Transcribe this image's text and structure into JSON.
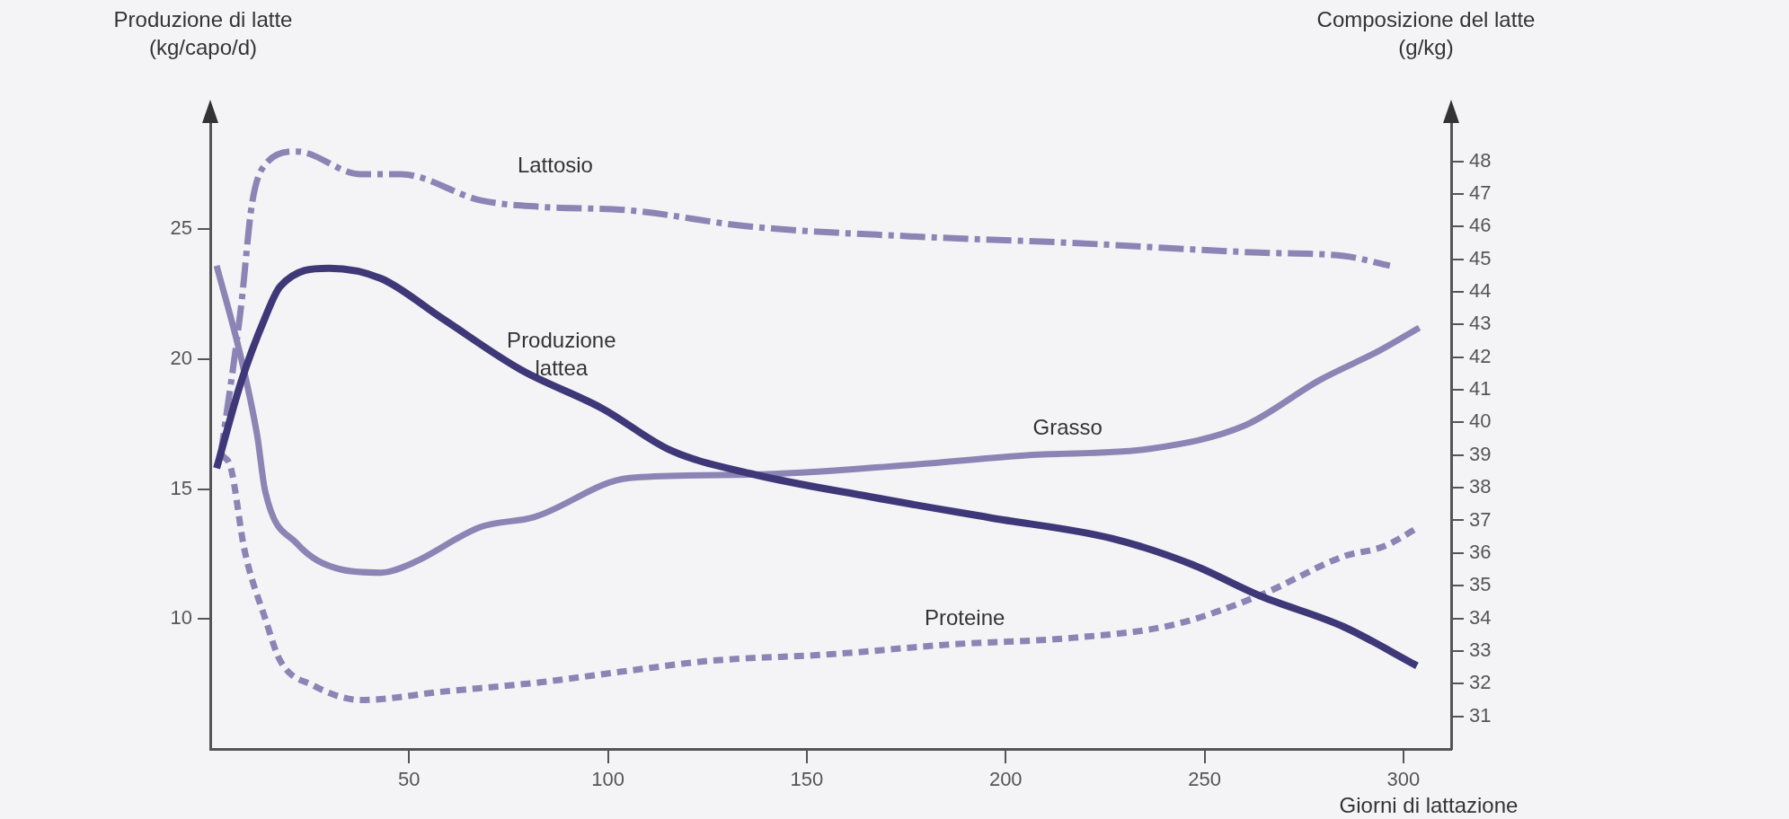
{
  "chart_data": {
    "type": "line",
    "xlabel": "Giorni di lattazione",
    "ylabel": "Produzione di latte\n(kg/capo/d)",
    "y2label": "Composizione del latte\n(g/kg)",
    "xlim": [
      0,
      312
    ],
    "xticks": [
      50,
      100,
      150,
      200,
      250,
      300
    ],
    "ylim": [
      5,
      29.5
    ],
    "yticks": [
      10,
      15,
      20,
      25
    ],
    "y2lim": [
      30,
      49.5
    ],
    "y2ticks": [
      31,
      32,
      33,
      34,
      35,
      36,
      37,
      38,
      39,
      40,
      41,
      42,
      43,
      44,
      45,
      46,
      47,
      48
    ],
    "grid": false,
    "legend": false,
    "marker": "none",
    "series": [
      {
        "name": "Produzione\nlattea",
        "color": "#3f3878",
        "line_style": "solid",
        "x": [
          1.6,
          7.7,
          13.8,
          17.6,
          29.9,
          43,
          58,
          78,
          98.6,
          115.6,
          135.7,
          166,
          196,
          226.7,
          246.8,
          263.8,
          285,
          303.4
        ],
        "values": [
          15.8,
          19.1,
          21.6,
          22.8,
          23.5,
          23.1,
          21.6,
          19.6,
          18.1,
          16.5,
          15.6,
          14.7,
          13.9,
          13.1,
          12.1,
          10.9,
          9.7,
          8.2
        ]
      },
      {
        "name": "Lattosio",
        "color": "#8c84b4",
        "line_style": "dashed",
        "axis": "y2",
        "x": [
          2.5,
          7.7,
          10.5,
          13.8,
          21.7,
          37.8,
          48,
          68,
          83.5,
          105,
          135.7,
          176,
          216.5,
          263.8,
          285,
          296.6
        ],
        "values": [
          38.9,
          43.5,
          46.7,
          47.9,
          48.3,
          47.6,
          47.6,
          46.8,
          46.6,
          46.5,
          46.0,
          45.7,
          45.5,
          45.2,
          45.1,
          44.8
        ]
      },
      {
        "name": "Grasso",
        "color": "#8c84b4",
        "line_style": "solid",
        "axis": "y2",
        "x": [
          1.6,
          7.7,
          11.8,
          13.8,
          21.7,
          32.8,
          43,
          51,
          68,
          81.4,
          105.4,
          135.7,
          176,
          206,
          236.7,
          260,
          279,
          294,
          304
        ],
        "values": [
          44.8,
          42.0,
          39.6,
          37.9,
          36.3,
          35.5,
          35.4,
          35.7,
          36.8,
          37.1,
          38.3,
          38.4,
          38.7,
          39.0,
          39.2,
          39.9,
          41.3,
          42.2,
          42.9
        ]
      },
      {
        "name": "Proteine",
        "color": "#8c84b4",
        "line_style": "dotted",
        "axis": "y2",
        "x": [
          3,
          5.2,
          8.6,
          13.8,
          17.6,
          25.8,
          38,
          58,
          83.5,
          105.4,
          125.6,
          156,
          186,
          216.5,
          242,
          263.8,
          285,
          295,
          304
        ],
        "values": [
          39.0,
          38.6,
          36.1,
          34.0,
          32.7,
          31.95,
          31.5,
          31.75,
          32.05,
          32.4,
          32.7,
          32.9,
          33.2,
          33.4,
          33.8,
          34.7,
          35.9,
          36.2,
          36.8
        ]
      }
    ]
  }
}
